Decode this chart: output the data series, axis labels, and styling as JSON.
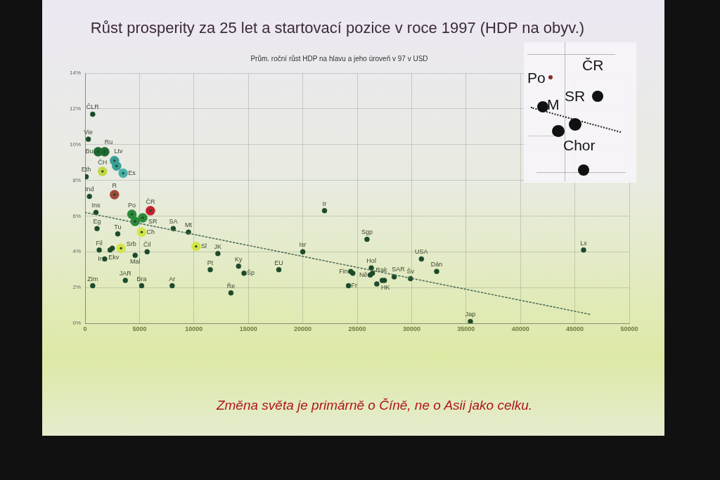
{
  "chart_data": [
    {
      "type": "scatter",
      "title": "Růst prosperity za 25 let a startovací pozice v roce 1997 (HDP na obyv.)",
      "subtitle": "Prům. roční růst HDP na hlavu a jeho úroveň v 97 v USD",
      "color": "#1d4a2a",
      "marker": "circle",
      "grid": true,
      "xlim": [
        0,
        50000
      ],
      "xticks": [
        0,
        5000,
        10000,
        15000,
        20000,
        25000,
        30000,
        35000,
        40000,
        45000,
        50000
      ],
      "ylim": [
        0,
        14
      ],
      "yticks": [
        {
          "value": 0,
          "label": "0%"
        },
        {
          "value": 2,
          "label": "2%"
        },
        {
          "value": 4,
          "label": "4%"
        },
        {
          "value": 6,
          "label": "6%"
        },
        {
          "value": 8,
          "label": "8%"
        },
        {
          "value": 10,
          "label": "10%"
        },
        {
          "value": 12,
          "label": "12%"
        },
        {
          "value": 14,
          "label": "14%"
        }
      ],
      "annotations": [
        "Změna světa je primárně o Číně, ne o Asii jako celku."
      ],
      "series": [
        {
          "name": "ČLR",
          "color": "#1d4a2a",
          "x": [
            700
          ],
          "values": [
            11.7
          ]
        },
        {
          "name": "Vie",
          "color": "#1d4a2a",
          "x": [
            300
          ],
          "values": [
            10.3
          ]
        },
        {
          "name": "Bu",
          "color": "#1e6a32",
          "x": [
            1200
          ],
          "values": [
            9.6
          ]
        },
        {
          "name": "Ru",
          "color": "#1e6a32",
          "x": [
            1800
          ],
          "values": [
            9.6
          ]
        },
        {
          "name": "Ltv",
          "color": "#3a9e98",
          "x": [
            2700
          ],
          "values": [
            9.1
          ]
        },
        {
          "color": "#3a9e98",
          "x": [
            2900
          ],
          "values": [
            8.8
          ]
        },
        {
          "name": "Es",
          "color": "#48b0a8",
          "x": [
            3500
          ],
          "values": [
            8.4
          ]
        },
        {
          "name": "ČH",
          "color": "#c4d640",
          "x": [
            1600
          ],
          "values": [
            8.5
          ]
        },
        {
          "name": "Eth",
          "color": "#1d4a2a",
          "x": [
            100
          ],
          "values": [
            8.2
          ]
        },
        {
          "name": "Ind",
          "color": "#1d4a2a",
          "x": [
            400
          ],
          "values": [
            7.1
          ]
        },
        {
          "name": "R",
          "color": "#a0483a",
          "x": [
            2700
          ],
          "values": [
            7.2
          ]
        },
        {
          "name": "Ins",
          "color": "#1d4a2a",
          "x": [
            1000
          ],
          "values": [
            6.2
          ]
        },
        {
          "name": "Po",
          "color": "#2a8a3a",
          "x": [
            4300
          ],
          "values": [
            6.1
          ]
        },
        {
          "name": "SR",
          "color": "#2a8a3a",
          "x": [
            5300
          ],
          "values": [
            5.9
          ]
        },
        {
          "name": "ČR",
          "color": "#c22030",
          "x": [
            6000
          ],
          "values": [
            6.3
          ]
        },
        {
          "color": "#2a8a3a",
          "x": [
            4600
          ],
          "values": [
            5.7
          ]
        },
        {
          "name": "Ch",
          "color": "#d4e444",
          "x": [
            5200
          ],
          "values": [
            5.1
          ]
        },
        {
          "name": "SA",
          "color": "#1d4a2a",
          "x": [
            8100
          ],
          "values": [
            5.3
          ]
        },
        {
          "name": "Mt",
          "color": "#1d4a2a",
          "x": [
            9500
          ],
          "values": [
            5.1
          ]
        },
        {
          "name": "Eg",
          "color": "#1d4a2a",
          "x": [
            1100
          ],
          "values": [
            5.3
          ]
        },
        {
          "name": "Tu",
          "color": "#1d4a2a",
          "x": [
            3000
          ],
          "values": [
            5.0
          ]
        },
        {
          "name": "Fil",
          "color": "#1d4a2a",
          "x": [
            1300
          ],
          "values": [
            4.1
          ]
        },
        {
          "name": "Ekv",
          "color": "#1d4a2a",
          "x": [
            2300
          ],
          "values": [
            4.1
          ]
        },
        {
          "name": "Srb",
          "color": "#d4e444",
          "x": [
            3300
          ],
          "values": [
            4.2
          ]
        },
        {
          "name": "Ir",
          "color": "#1d4a2a",
          "x": [
            1800
          ],
          "values": [
            3.6
          ]
        },
        {
          "name": "Mal",
          "color": "#1d4a2a",
          "x": [
            4600
          ],
          "values": [
            3.8
          ]
        },
        {
          "name": "Čil",
          "color": "#1d4a2a",
          "x": [
            5700
          ],
          "values": [
            4.0
          ]
        },
        {
          "name": "Sl",
          "color": "#d4e444",
          "x": [
            10200
          ],
          "values": [
            4.3
          ]
        },
        {
          "name": "JK",
          "color": "#1d4a2a",
          "x": [
            12200
          ],
          "values": [
            3.9
          ]
        },
        {
          "name": "Pt",
          "color": "#1d4a2a",
          "x": [
            11500
          ],
          "values": [
            3.0
          ]
        },
        {
          "name": "Zim",
          "color": "#1d4a2a",
          "x": [
            700
          ],
          "values": [
            2.1
          ]
        },
        {
          "name": "JAR",
          "color": "#1d4a2a",
          "x": [
            3700
          ],
          "values": [
            2.4
          ]
        },
        {
          "name": "Bra",
          "color": "#1d4a2a",
          "x": [
            5200
          ],
          "values": [
            2.1
          ]
        },
        {
          "name": "Ar",
          "color": "#1d4a2a",
          "x": [
            8000
          ],
          "values": [
            2.1
          ]
        },
        {
          "name": "Ky",
          "color": "#1d4a2a",
          "x": [
            14100
          ],
          "values": [
            3.2
          ]
        },
        {
          "name": "Šp",
          "color": "#1d4a2a",
          "x": [
            14600
          ],
          "values": [
            2.8
          ]
        },
        {
          "name": "Ře",
          "color": "#1d4a2a",
          "x": [
            13400
          ],
          "values": [
            1.7
          ]
        },
        {
          "name": "EU",
          "color": "#1d4a2a",
          "x": [
            17800
          ],
          "values": [
            3.0
          ]
        },
        {
          "name": "Isr",
          "color": "#1d4a2a",
          "x": [
            20000
          ],
          "values": [
            4.0
          ]
        },
        {
          "name": "Ir",
          "color": "#1d4a2a",
          "x": [
            22000
          ],
          "values": [
            6.3
          ]
        },
        {
          "name": "Sgp",
          "color": "#1d4a2a",
          "x": [
            25900
          ],
          "values": [
            4.7
          ]
        },
        {
          "name": "Fin",
          "color": "#1d4a2a",
          "x": [
            24400
          ],
          "values": [
            2.9
          ]
        },
        {
          "name": "Fr",
          "color": "#1d4a2a",
          "x": [
            24200
          ],
          "values": [
            2.1
          ]
        },
        {
          "name": "Hol",
          "color": "#1d4a2a",
          "x": [
            26300
          ],
          "values": [
            3.1
          ]
        },
        {
          "name": "Rak",
          "color": "#1d4a2a",
          "x": [
            26400
          ],
          "values": [
            2.8
          ]
        },
        {
          "name": "Ně",
          "color": "#1d4a2a",
          "x": [
            26200
          ],
          "values": [
            2.7
          ]
        },
        {
          "name": "HK",
          "color": "#1d4a2a",
          "x": [
            27300
          ],
          "values": [
            2.4
          ]
        },
        {
          "name": "SAR",
          "color": "#1d4a2a",
          "x": [
            28400
          ],
          "values": [
            2.6
          ]
        },
        {
          "name": "Šv",
          "color": "#1d4a2a",
          "x": [
            29900
          ],
          "values": [
            2.5
          ]
        },
        {
          "name": "USA",
          "color": "#1d4a2a",
          "x": [
            30900
          ],
          "values": [
            3.6
          ]
        },
        {
          "name": "Dán",
          "color": "#1d4a2a",
          "x": [
            32300
          ],
          "values": [
            2.9
          ]
        },
        {
          "name": "Lx",
          "color": "#1d4a2a",
          "x": [
            45800
          ],
          "values": [
            4.1
          ]
        },
        {
          "name": "Jap",
          "color": "#1d4a2a",
          "x": [
            35400
          ],
          "values": [
            0.1
          ]
        },
        {
          "color": "#1d4a2a",
          "x": [
            2500,
            24600,
            27500,
            26800
          ],
          "values": [
            4.2,
            2.8,
            2.4,
            2.2
          ]
        },
        {
          "type": "line",
          "color": "#4e6e5c",
          "line_style": "dotted",
          "marker": "none",
          "x": [
            0,
            46400
          ],
          "values": [
            6.2,
            0.5
          ]
        }
      ]
    },
    {
      "type": "other",
      "annotations": [
        "Po",
        "ČR",
        "SR",
        "M",
        "Chor"
      ]
    }
  ]
}
